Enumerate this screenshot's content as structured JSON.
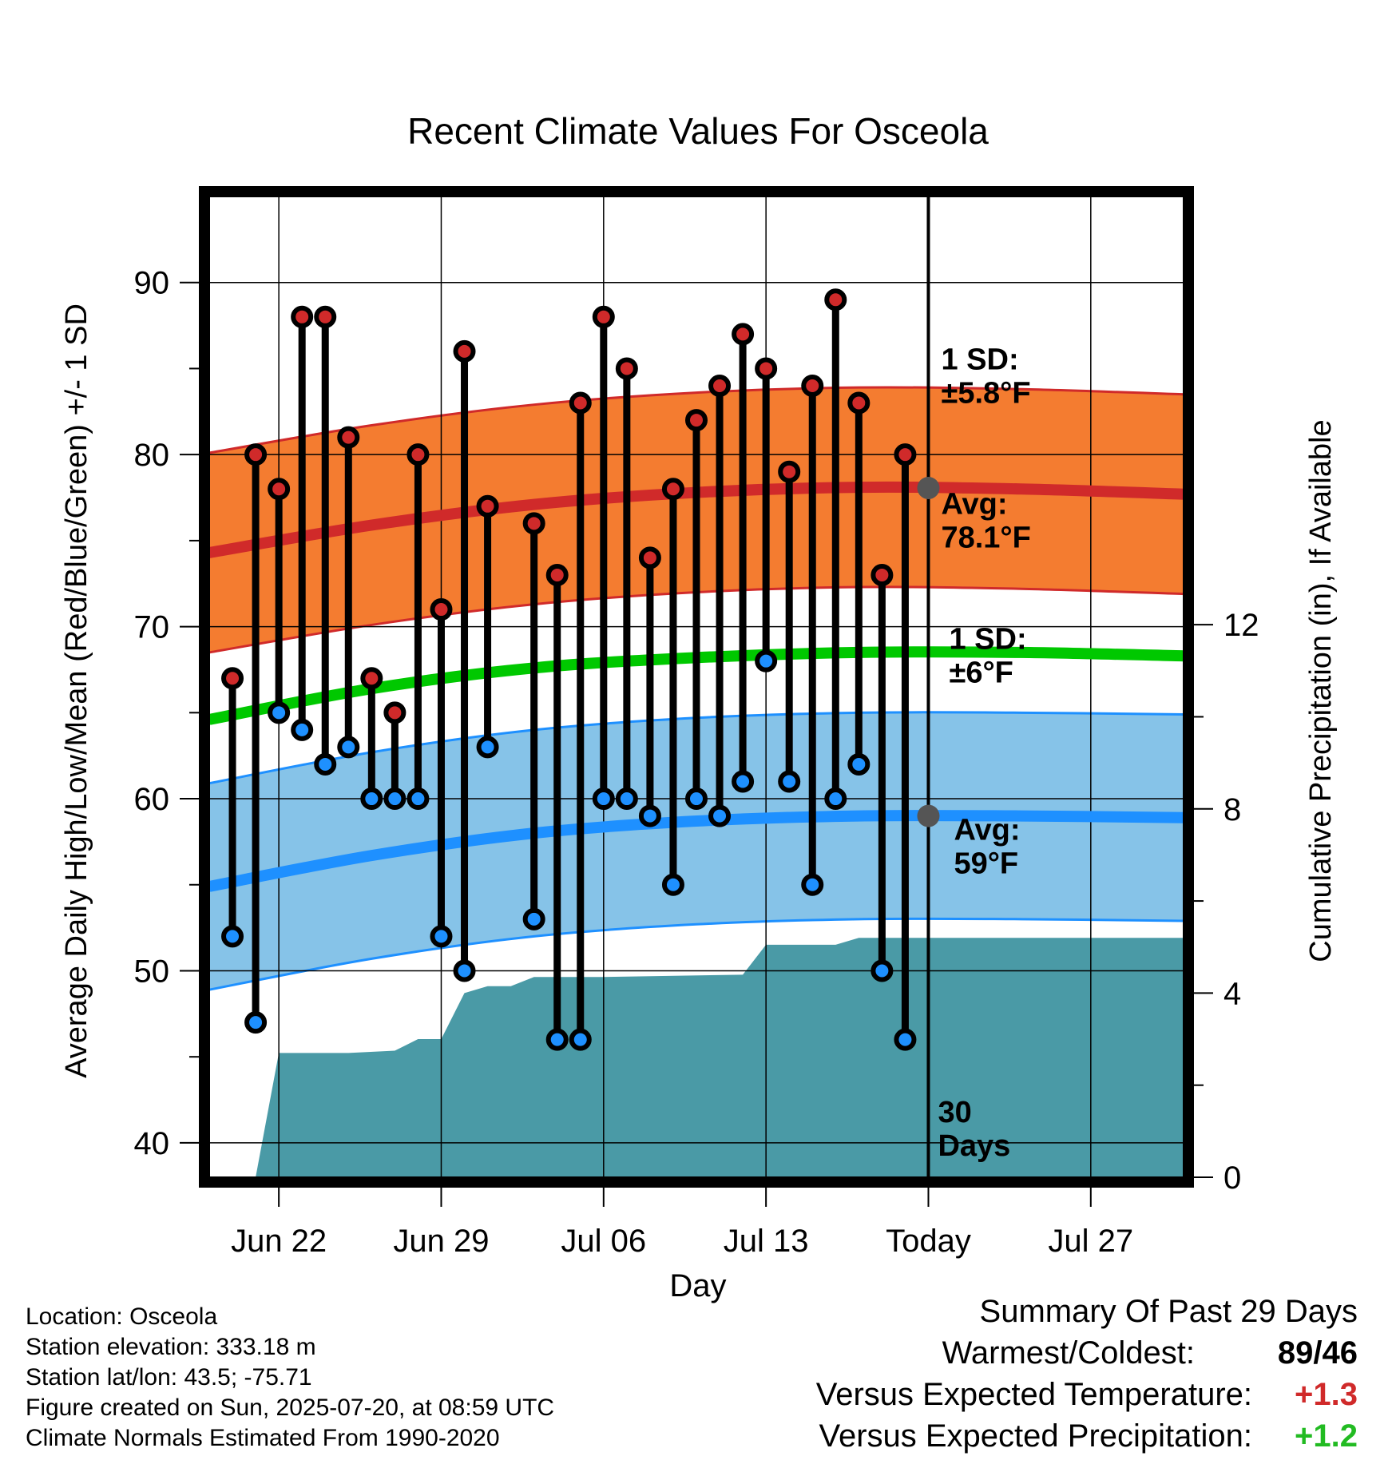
{
  "chart_data": {
    "type": "line",
    "title": "Recent Climate Values For Osceola",
    "xlabel": "Day",
    "ylabel": "Average Daily High/Low/Mean (Red/Blue/Green) +/- 1 SD",
    "y2label": "Cumulative Precipitation (in), If Available",
    "ylim": [
      38,
      95
    ],
    "y2lim": [
      0,
      21.3
    ],
    "xlim": [
      "2025-06-19",
      "2025-07-31"
    ],
    "x_tick_dates": [
      "2025-06-22",
      "2025-06-29",
      "2025-07-06",
      "2025-07-13",
      "2025-07-20",
      "2025-07-27"
    ],
    "x_tick_labels": [
      "Jun 22",
      "Jun 29",
      "Jul 06",
      "Jul 13",
      "Today",
      "Jul 27"
    ],
    "y_ticks": [
      40,
      50,
      60,
      70,
      80,
      90
    ],
    "y2_ticks": [
      0,
      4,
      8,
      12
    ],
    "today": "2025-07-20",
    "today_label": "30 Days",
    "grid": true,
    "normal_dates": [
      "2025-06-19",
      "2025-06-26",
      "2025-07-03",
      "2025-07-10",
      "2025-07-17",
      "2025-07-24",
      "2025-07-31"
    ],
    "normal_high": [
      74.3,
      75.9,
      77.1,
      77.8,
      78.1,
      78.0,
      77.7
    ],
    "normal_low": [
      54.9,
      56.7,
      58.0,
      58.7,
      59.0,
      59.0,
      58.9
    ],
    "normal_mean": [
      64.6,
      66.4,
      67.6,
      68.2,
      68.5,
      68.5,
      68.3
    ],
    "sd_high": 5.8,
    "sd_low": 6,
    "high_avg_label": "Avg:\n78.1°F",
    "high_sd_label": "1 SD:\n±5.8°F",
    "low_avg_label": "Avg:\n59°F",
    "low_sd_label": "1 SD:\n±6°F",
    "observed_dates": [
      "2025-06-20",
      "2025-06-21",
      "2025-06-22",
      "2025-06-23",
      "2025-06-24",
      "2025-06-25",
      "2025-06-26",
      "2025-06-27",
      "2025-06-28",
      "2025-06-29",
      "2025-06-30",
      "2025-07-01",
      "2025-07-03",
      "2025-07-04",
      "2025-07-05",
      "2025-07-06",
      "2025-07-07",
      "2025-07-08",
      "2025-07-09",
      "2025-07-10",
      "2025-07-11",
      "2025-07-12",
      "2025-07-13",
      "2025-07-14",
      "2025-07-15",
      "2025-07-16",
      "2025-07-17",
      "2025-07-18",
      "2025-07-19"
    ],
    "observed_high": [
      67,
      80,
      78,
      88,
      88,
      81,
      67,
      65,
      80,
      71,
      86,
      77,
      76,
      73,
      83,
      88,
      85,
      74,
      78,
      82,
      84,
      87,
      85,
      79,
      84,
      89,
      83,
      73,
      80
    ],
    "observed_low": [
      52,
      47,
      65,
      64,
      62,
      63,
      60,
      60,
      60,
      52,
      50,
      63,
      53,
      46,
      46,
      60,
      60,
      59,
      55,
      60,
      59,
      61,
      68,
      61,
      55,
      60,
      62,
      50,
      46
    ],
    "precip_dates": [
      "2025-06-19",
      "2025-06-20",
      "2025-06-21",
      "2025-06-22",
      "2025-06-25",
      "2025-06-27",
      "2025-06-28",
      "2025-06-29",
      "2025-06-30",
      "2025-07-01",
      "2025-07-02",
      "2025-07-03",
      "2025-07-06",
      "2025-07-12",
      "2025-07-13",
      "2025-07-16",
      "2025-07-17",
      "2025-07-20",
      "2025-07-31"
    ],
    "precip_cum": [
      0,
      0,
      0,
      2.7,
      2.7,
      2.75,
      3.0,
      3.0,
      4.0,
      4.15,
      4.15,
      4.35,
      4.35,
      4.4,
      5.05,
      5.05,
      5.2,
      5.2,
      5.2
    ],
    "colors": {
      "high": "#d02a2a",
      "high_band": "#f47c30",
      "low": "#1e90ff",
      "low_band": "#86c3e8",
      "mean": "#00c800",
      "precip": "#4a9aa6",
      "label_gray": "#555555"
    }
  },
  "info": {
    "location": "Location: Osceola",
    "elevation": "Station elevation: 333.18 m",
    "latlon": "Station lat/lon: 43.5; -75.71",
    "created": "Figure created on Sun, 2025-07-20, at 08:59 UTC",
    "normals": "Climate Normals Estimated From 1990-2020"
  },
  "summary": {
    "title": "Summary Of Past 29 Days",
    "warm_cold_label": "Warmest/Coldest:",
    "warmest": "89",
    "coldest": "46",
    "temp_label": "Versus Expected Temperature:",
    "temp_value": "+1.3",
    "temp_color": "#d02a2a",
    "precip_label": "Versus Expected Precipitation:",
    "precip_value": "+1.2",
    "precip_color": "#22bb22"
  }
}
